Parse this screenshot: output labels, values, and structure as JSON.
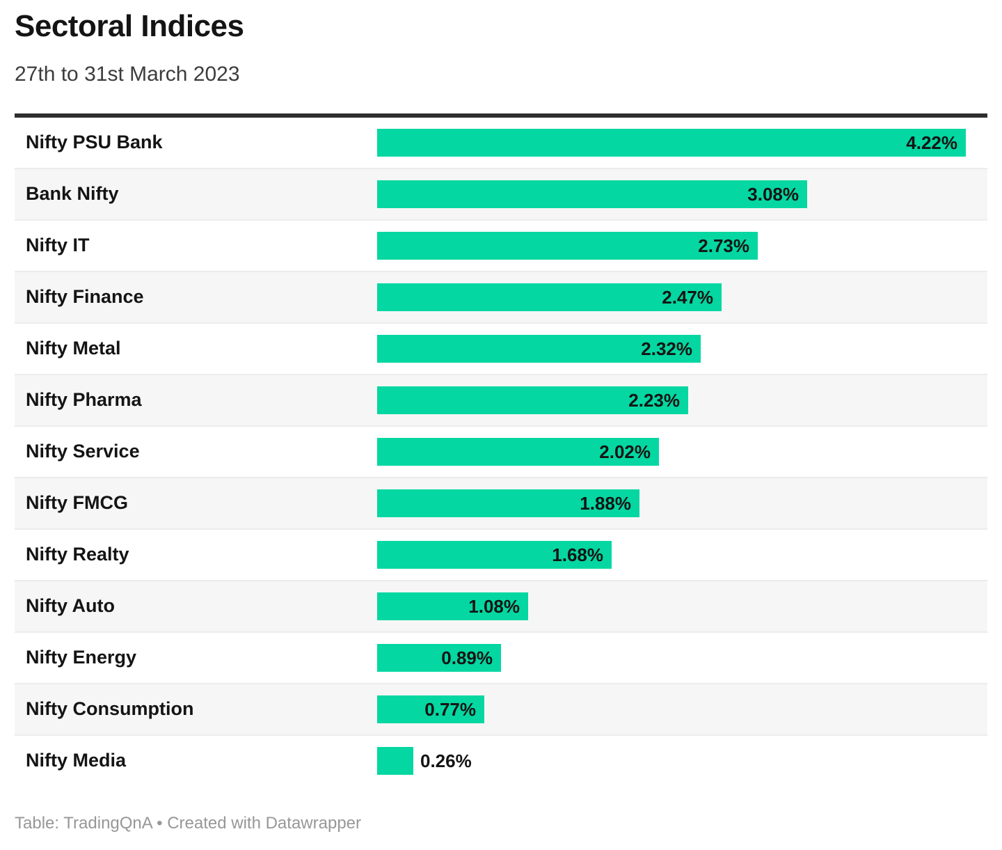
{
  "header": {
    "title": "Sectoral Indices",
    "subtitle": "27th to 31st March 2023"
  },
  "footer": {
    "text": "Table: TradingQnA • Created with Datawrapper"
  },
  "colors": {
    "bar": "#04d7a1",
    "row_alt": "#f6f6f6",
    "divider": "#ececec",
    "header_rule": "#2e2e2e",
    "text": "#141414",
    "footer_text": "#979797"
  },
  "chart_data": {
    "type": "bar",
    "orientation": "horizontal",
    "title": "Sectoral Indices",
    "subtitle": "27th to 31st March 2023",
    "xlabel": "",
    "ylabel": "",
    "xlim": [
      0,
      4.4
    ],
    "grid": false,
    "legend": false,
    "bar_color": "#04d7a1",
    "categories": [
      "Nifty PSU Bank",
      "Bank Nifty",
      "Nifty IT",
      "Nifty Finance",
      "Nifty Metal",
      "Nifty Pharma",
      "Nifty Service",
      "Nifty FMCG",
      "Nifty Realty",
      "Nifty Auto",
      "Nifty Energy",
      "Nifty Consumption",
      "Nifty Media"
    ],
    "values": [
      4.22,
      3.08,
      2.73,
      2.47,
      2.32,
      2.23,
      2.02,
      1.88,
      1.68,
      1.08,
      0.89,
      0.77,
      0.26
    ],
    "value_labels": [
      "4.22%",
      "3.08%",
      "2.73%",
      "2.47%",
      "2.32%",
      "2.23%",
      "2.02%",
      "1.88%",
      "1.68%",
      "1.08%",
      "0.89%",
      "0.77%",
      "0.26%"
    ]
  }
}
